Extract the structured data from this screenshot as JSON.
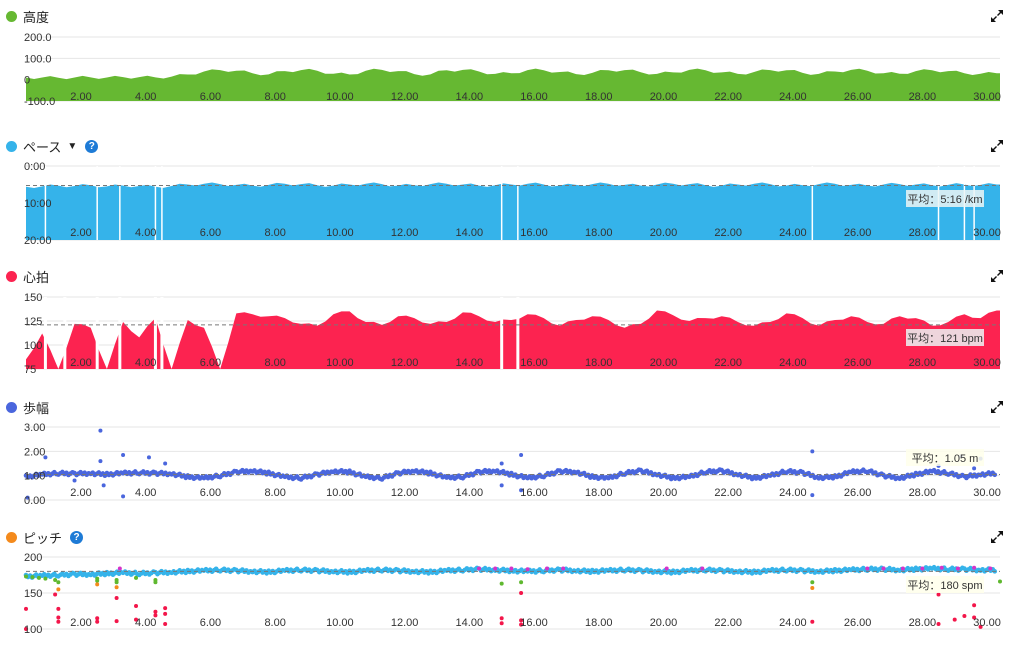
{
  "colors": {
    "elevation": "#66b832",
    "pace": "#35b3ea",
    "hr": "#fc2350",
    "stride": "#4a66dd",
    "cadence": "#35b3ea",
    "cad_magenta": "#d433c9",
    "cad_green": "#5fb82f",
    "cad_orange": "#f48a1c",
    "cad_red": "#f3164a"
  },
  "panels": [
    {
      "key": "elevation",
      "title": "高度",
      "icon": "green-dot",
      "has_caret": false,
      "has_help": false
    },
    {
      "key": "pace",
      "title": "ペース",
      "icon": "blue-dot",
      "has_caret": true,
      "has_help": true,
      "avg_label": "平均：5:16 /km"
    },
    {
      "key": "hr",
      "title": "心拍",
      "icon": "red-dot",
      "has_caret": false,
      "has_help": false,
      "avg_label": "平均：121 bpm"
    },
    {
      "key": "stride",
      "title": "歩幅",
      "icon": "blue-dot",
      "has_caret": false,
      "has_help": false,
      "avg_label": "平均：1.05 m"
    },
    {
      "key": "cadence",
      "title": "ピッチ",
      "icon": "orange-dot",
      "has_caret": false,
      "has_help": true,
      "avg_label": "平均：180 spm"
    }
  ],
  "help_glyph": "?",
  "caret_glyph": "▼",
  "chart_data": [
    {
      "type": "area",
      "name": "elevation",
      "title": "高度",
      "xlim": [
        0.3,
        30.4
      ],
      "ylim": [
        -100,
        200
      ],
      "yticks": [
        {
          "v": 200,
          "label": "200.0"
        },
        {
          "v": 100,
          "label": "100.0"
        },
        {
          "v": 0,
          "label": "0"
        },
        {
          "v": -100,
          "label": "-100.0"
        }
      ],
      "xticks": [
        "2.00",
        "4.00",
        "6.00",
        "8.00",
        "10.00",
        "12.00",
        "14.00",
        "16.00",
        "18.00",
        "20.00",
        "22.00",
        "24.00",
        "26.00",
        "28.00",
        "30.00"
      ],
      "x_start": 0.3,
      "x_step": 0.5,
      "values": [
        10,
        10,
        9,
        10,
        11,
        10,
        12,
        12,
        11,
        14,
        24,
        38,
        45,
        42,
        30,
        25,
        40,
        45,
        42,
        28,
        24,
        42,
        46,
        40,
        26,
        25,
        44,
        46,
        38,
        27,
        30,
        45,
        44,
        36,
        26,
        32,
        44,
        45,
        35,
        27,
        34,
        46,
        44,
        34,
        27,
        36,
        45,
        44,
        32,
        27,
        38,
        46,
        42,
        30,
        28,
        40,
        44,
        40,
        30,
        28,
        30
      ]
    },
    {
      "type": "area",
      "name": "pace",
      "title": "ペース",
      "unit": "min/km",
      "xlim": [
        0.3,
        30.4
      ],
      "ylim": [
        20,
        0
      ],
      "avg": 5.27,
      "yticks": [
        {
          "v": 0,
          "label": "0:00"
        },
        {
          "v": 10,
          "label": "10:00"
        },
        {
          "v": 20,
          "label": "20:00"
        }
      ],
      "xticks": [
        "2.00",
        "4.00",
        "6.00",
        "8.00",
        "10.00",
        "12.00",
        "14.00",
        "16.00",
        "18.00",
        "20.00",
        "22.00",
        "24.00",
        "26.00",
        "28.00",
        "30.00"
      ],
      "x_start": 0.3,
      "x_step": 0.5,
      "values": [
        5.6,
        5.5,
        5.3,
        5.4,
        5.2,
        5.5,
        5.3,
        5.4,
        5.6,
        5.4,
        5.0,
        4.8,
        4.9,
        5.1,
        5.3,
        5.1,
        4.8,
        4.9,
        5.2,
        5.3,
        5.0,
        4.8,
        4.9,
        5.3,
        5.2,
        4.9,
        4.8,
        5.0,
        5.3,
        5.2,
        5.0,
        4.8,
        5.0,
        5.3,
        5.1,
        4.9,
        4.8,
        5.1,
        5.3,
        5.0,
        4.8,
        4.9,
        5.2,
        5.3,
        5.0,
        4.8,
        4.9,
        5.3,
        5.2,
        4.9,
        4.8,
        5.1,
        5.3,
        5.0,
        4.9,
        5.0,
        5.2,
        5.1,
        5.0,
        5.1,
        5.0
      ],
      "gaps": [
        0.9,
        2.5,
        3.2,
        4.3,
        4.5,
        15.0,
        15.5,
        24.6,
        28.5,
        29.3,
        29.6
      ]
    },
    {
      "type": "area",
      "name": "hr",
      "title": "心拍",
      "unit": "bpm",
      "xlim": [
        0.3,
        30.4
      ],
      "ylim": [
        75,
        150
      ],
      "avg": 121,
      "yticks": [
        {
          "v": 150,
          "label": "150"
        },
        {
          "v": 125,
          "label": "125"
        },
        {
          "v": 100,
          "label": "100"
        },
        {
          "v": 75,
          "label": "75"
        }
      ],
      "xticks": [
        "2.00",
        "4.00",
        "6.00",
        "8.00",
        "10.00",
        "12.00",
        "14.00",
        "16.00",
        "18.00",
        "20.00",
        "22.00",
        "24.00",
        "26.00",
        "28.00",
        "30.00"
      ],
      "x_start": 0.3,
      "x_step": 0.5,
      "values": [
        85,
        112,
        75,
        122,
        118,
        75,
        124,
        108,
        128,
        75,
        126,
        118,
        75,
        133,
        132,
        130,
        128,
        122,
        120,
        132,
        135,
        124,
        121,
        130,
        128,
        122,
        124,
        134,
        130,
        124,
        126,
        132,
        128,
        120,
        126,
        130,
        126,
        118,
        122,
        136,
        131,
        125,
        128,
        130,
        124,
        120,
        124,
        133,
        128,
        120,
        126,
        130,
        124,
        122,
        130,
        128,
        120,
        124,
        132,
        128,
        136
      ],
      "gaps": [
        0.9,
        1.5,
        2.5,
        3.2,
        4.3,
        4.5,
        15.0,
        15.5
      ]
    },
    {
      "type": "scatter",
      "name": "stride",
      "title": "歩幅",
      "unit": "m",
      "xlim": [
        0.3,
        30.4
      ],
      "ylim": [
        0,
        3
      ],
      "avg": 1.05,
      "yticks": [
        {
          "v": 3,
          "label": "3.00"
        },
        {
          "v": 2,
          "label": "2.00"
        },
        {
          "v": 1,
          "label": "1.00"
        },
        {
          "v": 0,
          "label": "0.00"
        }
      ],
      "xticks": [
        "2.00",
        "4.00",
        "6.00",
        "8.00",
        "10.00",
        "12.00",
        "14.00",
        "16.00",
        "18.00",
        "20.00",
        "22.00",
        "24.00",
        "26.00",
        "28.00",
        "30.00"
      ],
      "x_start": 0.3,
      "x_step": 0.5,
      "values": [
        0.95,
        1.05,
        1.1,
        1.08,
        1.1,
        1.05,
        1.1,
        1.12,
        1.1,
        1.08,
        0.95,
        0.9,
        1.0,
        1.15,
        1.2,
        1.1,
        0.95,
        0.9,
        1.05,
        1.18,
        1.15,
        0.95,
        0.9,
        1.1,
        1.2,
        1.1,
        0.92,
        0.95,
        1.15,
        1.2,
        1.05,
        0.9,
        1.0,
        1.18,
        1.15,
        0.95,
        0.9,
        1.1,
        1.2,
        1.05,
        0.9,
        0.95,
        1.15,
        1.2,
        1.05,
        0.9,
        1.0,
        1.18,
        1.12,
        0.92,
        0.95,
        1.15,
        1.2,
        1.0,
        0.9,
        1.05,
        1.18,
        1.1,
        0.95,
        1.05,
        1.1
      ],
      "outliers": [
        [
          0.35,
          0.1
        ],
        [
          0.9,
          1.75
        ],
        [
          1.8,
          0.8
        ],
        [
          2.6,
          2.85
        ],
        [
          2.6,
          1.6
        ],
        [
          2.7,
          0.6
        ],
        [
          3.3,
          1.85
        ],
        [
          3.3,
          0.15
        ],
        [
          4.1,
          1.75
        ],
        [
          4.6,
          1.5
        ],
        [
          15.0,
          1.5
        ],
        [
          15.0,
          0.6
        ],
        [
          15.6,
          1.85
        ],
        [
          15.6,
          0.4
        ],
        [
          24.6,
          2.0
        ],
        [
          24.6,
          0.2
        ],
        [
          28.5,
          1.4
        ],
        [
          29.2,
          1.8
        ],
        [
          29.6,
          1.3
        ],
        [
          29.8,
          1.7
        ]
      ]
    },
    {
      "type": "scatter",
      "name": "cadence",
      "title": "ピッチ",
      "unit": "spm",
      "xlim": [
        0.3,
        30.4
      ],
      "ylim": [
        100,
        200
      ],
      "avg": 180,
      "yticks": [
        {
          "v": 200,
          "label": "200"
        },
        {
          "v": 150,
          "label": "150"
        },
        {
          "v": 100,
          "label": "100"
        }
      ],
      "xticks": [
        "2.00",
        "4.00",
        "6.00",
        "8.00",
        "10.00",
        "12.00",
        "14.00",
        "16.00",
        "18.00",
        "20.00",
        "22.00",
        "24.00",
        "26.00",
        "28.00",
        "30.00"
      ],
      "x_start": 0.3,
      "x_step": 0.5,
      "values": [
        173,
        174,
        175,
        176,
        176,
        177,
        178,
        177,
        178,
        179,
        180,
        181,
        182,
        181,
        180,
        179,
        181,
        182,
        181,
        180,
        179,
        181,
        182,
        181,
        180,
        179,
        181,
        182,
        183,
        182,
        181,
        180,
        181,
        182,
        181,
        180,
        181,
        182,
        181,
        180,
        179,
        181,
        182,
        181,
        180,
        179,
        181,
        182,
        181,
        180,
        181,
        182,
        183,
        183,
        182,
        183,
        184,
        183,
        183,
        182,
        182
      ],
      "magenta": [
        [
          3.2,
          184
        ],
        [
          14.3,
          184
        ],
        [
          14.8,
          184
        ],
        [
          15.3,
          184
        ],
        [
          15.8,
          183
        ],
        [
          16.4,
          184
        ],
        [
          16.9,
          184
        ],
        [
          20.1,
          184
        ],
        [
          21.2,
          184
        ],
        [
          26.3,
          184
        ],
        [
          26.8,
          184
        ],
        [
          27.4,
          184
        ],
        [
          28.0,
          184
        ],
        [
          28.6,
          185
        ],
        [
          29.1,
          184
        ],
        [
          29.6,
          185
        ],
        [
          30.1,
          184
        ]
      ],
      "green": [
        [
          0.3,
          173
        ],
        [
          0.5,
          172
        ],
        [
          0.7,
          171
        ],
        [
          0.9,
          170
        ],
        [
          1.2,
          168
        ],
        [
          1.3,
          165
        ],
        [
          2.5,
          170
        ],
        [
          2.5,
          167
        ],
        [
          3.1,
          168
        ],
        [
          3.1,
          165
        ],
        [
          3.7,
          171
        ],
        [
          4.3,
          168
        ],
        [
          4.3,
          165
        ],
        [
          15.0,
          163
        ],
        [
          15.6,
          165
        ],
        [
          24.6,
          165
        ],
        [
          30.4,
          166
        ]
      ],
      "orange": [
        [
          1.3,
          155
        ],
        [
          2.5,
          162
        ],
        [
          3.1,
          158
        ],
        [
          24.6,
          157
        ]
      ],
      "red": [
        [
          0.3,
          128
        ],
        [
          0.3,
          100
        ],
        [
          1.2,
          148
        ],
        [
          1.3,
          128
        ],
        [
          1.3,
          116
        ],
        [
          1.3,
          110
        ],
        [
          2.5,
          115
        ],
        [
          2.5,
          110
        ],
        [
          3.1,
          143
        ],
        [
          3.1,
          111
        ],
        [
          3.7,
          132
        ],
        [
          3.7,
          113
        ],
        [
          4.3,
          124
        ],
        [
          4.3,
          119
        ],
        [
          4.6,
          129
        ],
        [
          4.6,
          121
        ],
        [
          4.6,
          107
        ],
        [
          15.0,
          115
        ],
        [
          15.0,
          108
        ],
        [
          15.6,
          150
        ],
        [
          15.6,
          112
        ],
        [
          15.6,
          106
        ],
        [
          24.6,
          110
        ],
        [
          28.5,
          148
        ],
        [
          28.5,
          107
        ],
        [
          29.0,
          113
        ],
        [
          29.3,
          118
        ],
        [
          29.6,
          133
        ],
        [
          29.6,
          116
        ],
        [
          29.8,
          103
        ]
      ]
    }
  ]
}
